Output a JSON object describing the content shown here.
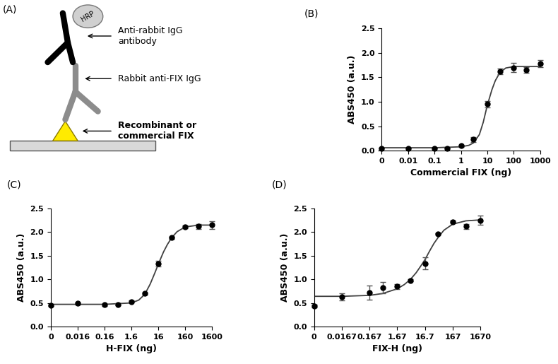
{
  "diagram": {
    "title": "(A)",
    "enzyme": "HRP",
    "labels": [
      "Anti-rabbit IgG\nantibody",
      "Rabbit anti-FIX IgG",
      "Recombinant or\ncommercial FIX"
    ]
  },
  "chart_data": [
    {
      "type": "scatter",
      "title": "(B)",
      "x_label": "Commercial FIX (ng)",
      "y_label": "ABS450 (a.u.)",
      "log": "x",
      "x": [
        0,
        0.01,
        0.1,
        0.3,
        1,
        3,
        10,
        30,
        100,
        300,
        1000
      ],
      "series": [
        {
          "type": "scatter",
          "marker": "o",
          "color": "#000000",
          "values": [
            0.05,
            0.05,
            0.05,
            0.05,
            0.1,
            0.23,
            0.95,
            1.62,
            1.7,
            1.65,
            1.78
          ],
          "error": [
            0.01,
            0.01,
            0.01,
            0.01,
            0.02,
            0.05,
            0.07,
            0.06,
            0.1,
            0.06,
            0.07
          ]
        },
        {
          "type": "line",
          "line_style": "solid",
          "color": "#404040",
          "x": [
            0,
            0.01,
            0.1,
            1,
            2,
            3,
            5,
            7,
            10,
            15,
            20,
            30,
            50,
            100,
            300,
            1000
          ],
          "values": [
            0.06,
            0.06,
            0.06,
            0.08,
            0.11,
            0.16,
            0.33,
            0.58,
            0.93,
            1.25,
            1.43,
            1.6,
            1.69,
            1.72,
            1.72,
            1.72
          ]
        }
      ],
      "xlim": [
        0,
        1000
      ],
      "xticks": [
        0,
        0.01,
        0.1,
        1,
        10,
        100,
        1000
      ],
      "ylim": [
        0,
        2.5
      ],
      "yticks": [
        0.0,
        0.5,
        1.0,
        1.5,
        2.0,
        2.5
      ]
    },
    {
      "type": "scatter",
      "title": "(C)",
      "x_label": "H-FIX (ng)",
      "y_label": "ABS450 (a.u.)",
      "log": "x",
      "x": [
        0,
        0.016,
        0.16,
        0.5,
        1.6,
        5,
        16,
        50,
        160,
        500,
        1600
      ],
      "series": [
        {
          "type": "scatter",
          "marker": "o",
          "color": "#000000",
          "values": [
            0.45,
            0.49,
            0.46,
            0.47,
            0.53,
            0.7,
            1.33,
            1.88,
            2.11,
            2.12,
            2.15
          ],
          "error": [
            0.02,
            0.02,
            0.02,
            0.02,
            0.02,
            0.02,
            0.06,
            0.02,
            0.03,
            0.05,
            0.08
          ]
        },
        {
          "type": "line",
          "line_style": "solid",
          "color": "#404040",
          "x": [
            0,
            0.016,
            0.16,
            1.6,
            3,
            5,
            8,
            12,
            16,
            25,
            35,
            50,
            80,
            160,
            500,
            1600
          ],
          "values": [
            0.47,
            0.47,
            0.47,
            0.5,
            0.56,
            0.68,
            0.9,
            1.14,
            1.32,
            1.58,
            1.74,
            1.88,
            2.01,
            2.11,
            2.15,
            2.15
          ]
        }
      ],
      "xlim": [
        0,
        1600
      ],
      "xticks": [
        0,
        0.016,
        0.16,
        1.6,
        16,
        160,
        1600
      ],
      "ylim": [
        0,
        2.5
      ],
      "yticks": [
        0.0,
        0.5,
        1.0,
        1.5,
        2.0,
        2.5
      ]
    },
    {
      "type": "scatter",
      "title": "(D)",
      "x_label": "FIX-H (ng)",
      "y_label": "ABS450 (a.u.)",
      "log": "x",
      "x": [
        0,
        0.0167,
        0.167,
        0.5,
        1.67,
        5,
        16.7,
        50,
        167,
        500,
        1670
      ],
      "series": [
        {
          "type": "scatter",
          "marker": "o",
          "color": "#000000",
          "values": [
            0.43,
            0.63,
            0.72,
            0.82,
            0.85,
            0.98,
            1.34,
            1.96,
            2.22,
            2.12,
            2.25
          ],
          "error": [
            0.03,
            0.07,
            0.15,
            0.12,
            0.05,
            0.02,
            0.13,
            0.02,
            0.02,
            0.05,
            0.1
          ]
        },
        {
          "type": "line",
          "line_style": "solid",
          "color": "#404040",
          "x": [
            0,
            0.0167,
            0.167,
            0.5,
            1.67,
            3,
            5,
            8,
            12,
            16.7,
            25,
            35,
            50,
            80,
            167,
            500,
            1670
          ],
          "values": [
            0.64,
            0.64,
            0.66,
            0.7,
            0.8,
            0.89,
            1.0,
            1.14,
            1.29,
            1.42,
            1.61,
            1.76,
            1.89,
            2.04,
            2.17,
            2.24,
            2.26
          ]
        }
      ],
      "xlim": [
        0,
        1670
      ],
      "xticks": [
        0,
        0.0167,
        0.167,
        1.67,
        16.7,
        167,
        1670
      ],
      "ylim": [
        0,
        2.5
      ],
      "yticks": [
        0.0,
        0.5,
        1.0,
        1.5,
        2.0,
        2.5
      ]
    }
  ]
}
